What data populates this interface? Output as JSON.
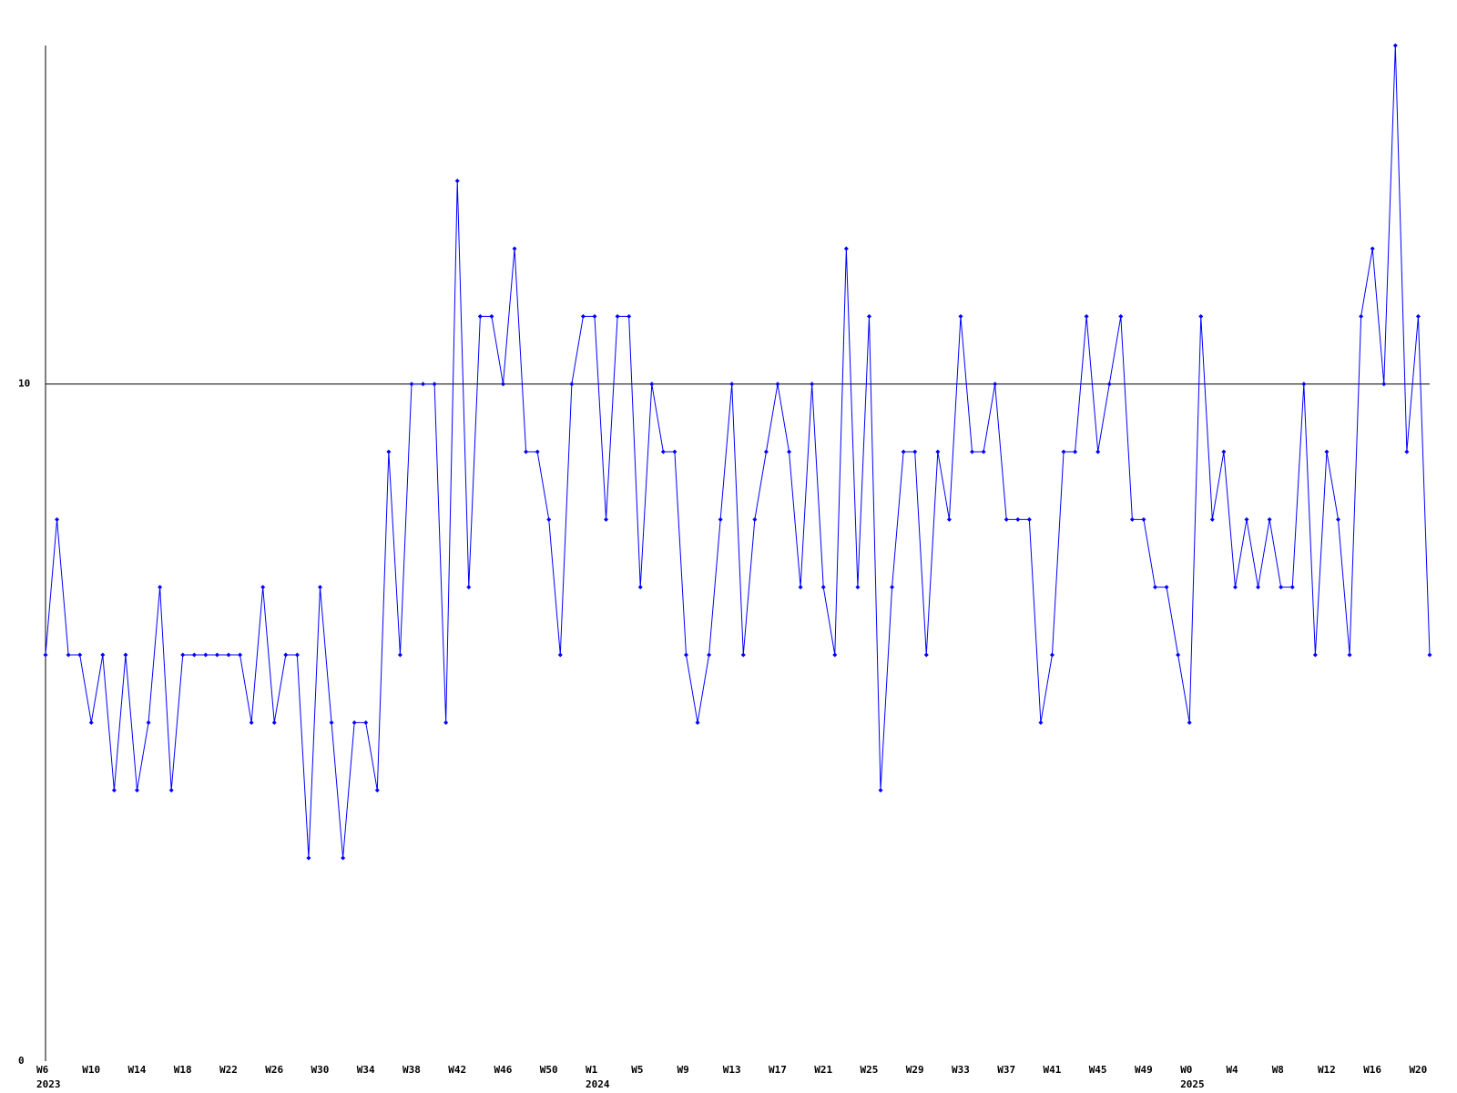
{
  "chart_data": {
    "type": "line",
    "categories": [
      "W6",
      null,
      null,
      null,
      "W10",
      null,
      null,
      null,
      "W14",
      null,
      null,
      null,
      "W18",
      null,
      null,
      null,
      "W22",
      null,
      null,
      null,
      "W26",
      null,
      null,
      null,
      "W30",
      null,
      null,
      null,
      "W34",
      null,
      null,
      null,
      "W38",
      null,
      null,
      null,
      "W42",
      null,
      null,
      null,
      "W46",
      null,
      null,
      null,
      "W50",
      null,
      null,
      null,
      "W1",
      null,
      null,
      null,
      "W5",
      null,
      null,
      null,
      "W9",
      null,
      null,
      null,
      "W13",
      null,
      null,
      null,
      "W17",
      null,
      null,
      null,
      "W21",
      null,
      null,
      null,
      "W25",
      null,
      null,
      null,
      "W29",
      null,
      null,
      null,
      "W33",
      null,
      null,
      null,
      "W37",
      null,
      null,
      null,
      "W41",
      null,
      null,
      null,
      "W45",
      null,
      null,
      null,
      "W49",
      null,
      null,
      null,
      "W0",
      null,
      null,
      null,
      "W4",
      null,
      null,
      null,
      "W8",
      null,
      null,
      null,
      "W12",
      null,
      null,
      null,
      "W16",
      null,
      null,
      null,
      "W20",
      null
    ],
    "years": [
      "2023",
      null,
      null,
      null,
      null,
      null,
      null,
      null,
      null,
      null,
      null,
      null,
      null,
      null,
      null,
      null,
      null,
      null,
      null,
      null,
      null,
      null,
      null,
      null,
      null,
      null,
      null,
      null,
      null,
      null,
      null,
      null,
      null,
      null,
      null,
      null,
      null,
      null,
      null,
      null,
      null,
      null,
      null,
      null,
      null,
      null,
      null,
      null,
      "2024",
      null,
      null,
      null,
      null,
      null,
      null,
      null,
      null,
      null,
      null,
      null,
      null,
      null,
      null,
      null,
      null,
      null,
      null,
      null,
      null,
      null,
      null,
      null,
      null,
      null,
      null,
      null,
      null,
      null,
      null,
      null,
      null,
      null,
      null,
      null,
      null,
      null,
      null,
      null,
      null,
      null,
      null,
      null,
      null,
      null,
      null,
      null,
      null,
      null,
      null,
      null,
      "2025",
      null,
      null,
      null,
      null,
      null,
      null,
      null,
      null,
      null,
      null,
      null,
      null,
      null,
      null,
      null,
      null,
      null,
      null,
      null,
      null
    ],
    "values": [
      6,
      8,
      6,
      6,
      5,
      6,
      4,
      6,
      4,
      5,
      7,
      4,
      6,
      6,
      6,
      6,
      6,
      6,
      5,
      7,
      5,
      6,
      6,
      3,
      7,
      5,
      3,
      5,
      5,
      4,
      9,
      6,
      10,
      10,
      10,
      5,
      13,
      7,
      11,
      11,
      10,
      12,
      9,
      9,
      8,
      6,
      10,
      11,
      11,
      8,
      11,
      11,
      7,
      10,
      9,
      9,
      6,
      5,
      6,
      8,
      10,
      6,
      8,
      9,
      10,
      9,
      7,
      10,
      7,
      6,
      12,
      7,
      11,
      4,
      7,
      9,
      9,
      6,
      9,
      8,
      11,
      9,
      9,
      10,
      8,
      8,
      8,
      5,
      6,
      9,
      9,
      11,
      9,
      10,
      11,
      8,
      8,
      7,
      7,
      6,
      5,
      11,
      8,
      9,
      7,
      8,
      7,
      8,
      7,
      7,
      10,
      6,
      9,
      8,
      6,
      11,
      12,
      10,
      15,
      9,
      11,
      6
    ],
    "color": "#0000ff",
    "ylim": [
      0,
      15
    ],
    "yticks": [
      0,
      10
    ],
    "grid": true
  }
}
